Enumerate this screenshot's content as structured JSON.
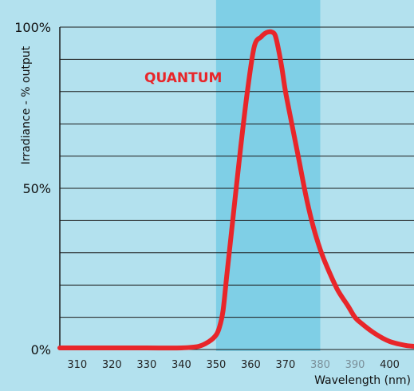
{
  "chart_data": {
    "type": "line",
    "title": "",
    "xlabel": "Wavelength (nm)",
    "ylabel": "Irradiance - % output",
    "xlim": [
      305,
      407
    ],
    "ylim": [
      0,
      100
    ],
    "x_ticks": [
      310,
      320,
      330,
      340,
      350,
      360,
      370,
      380,
      390,
      400
    ],
    "dim_x_ticks": [
      380,
      390
    ],
    "y_ticks": [
      {
        "value": 0,
        "label": "0%"
      },
      {
        "value": 50,
        "label": "50%"
      },
      {
        "value": 100,
        "label": "100%"
      }
    ],
    "grid": "horizontal",
    "highlight_band": {
      "x": [
        350,
        380
      ],
      "color": "#7fcfe6"
    },
    "annotation": {
      "text": "QUANTUM",
      "color": "#e8262a"
    },
    "colors": {
      "background": "#b3e1ee",
      "line": "#e8262a",
      "grid": "#1a1a1a"
    },
    "series": [
      {
        "x": [
          305,
          310,
          320,
          330,
          340,
          345,
          348,
          350,
          351,
          352,
          353,
          355,
          357,
          359,
          361,
          363,
          364,
          365,
          366,
          367,
          368,
          369,
          370,
          372,
          374,
          376,
          378,
          380,
          382,
          385,
          388,
          390,
          392,
          395,
          398,
          400,
          403,
          405,
          407
        ],
        "y": [
          0.5,
          0.5,
          0.5,
          0.5,
          0.5,
          1,
          2.5,
          4.5,
          7,
          12,
          22,
          42,
          62,
          80,
          94,
          97,
          98,
          98.5,
          98.5,
          97.5,
          93,
          87,
          80,
          69,
          58,
          47,
          38,
          31,
          25.5,
          18.5,
          13.5,
          10,
          8,
          5.5,
          3.5,
          2.5,
          1.6,
          1.2,
          1
        ]
      }
    ]
  }
}
